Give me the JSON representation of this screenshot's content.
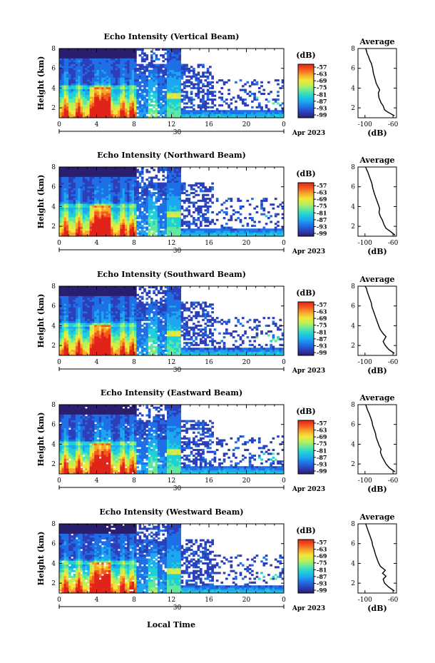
{
  "footer_xlabel": "Local Time",
  "date_label": "Apr 2023",
  "colormap": [
    "#2a1e6e",
    "#2c3fb8",
    "#1f6fe6",
    "#1ea6f0",
    "#1fd0d8",
    "#5fe8a0",
    "#b9f05a",
    "#f3e63a",
    "#f7a62a",
    "#f25a1e",
    "#e0241a"
  ],
  "chart_data": [
    {
      "type": "heatmap",
      "title": "Echo Intensity (Vertical Beam)",
      "ylabel": "Height (km)",
      "xlim": [
        0,
        24
      ],
      "ylim": [
        1,
        8
      ],
      "xticks": [
        "0",
        "4",
        "8",
        "12",
        "16",
        "20",
        "0"
      ],
      "yticks": [
        "2",
        "4",
        "6",
        "8"
      ],
      "day_marker": "30",
      "colorbar": {
        "unit": "(dB)",
        "ticks": [
          "-57",
          "-63",
          "-69",
          "-75",
          "-81",
          "-87",
          "-93",
          "-99"
        ]
      },
      "profile": {
        "title": "Average",
        "xlabel": "(dB)",
        "xticks": [
          "-100",
          "-60"
        ],
        "yticks": [
          "2",
          "4",
          "6",
          "8"
        ],
        "x": [
          -58,
          -68,
          -72,
          -74,
          -77,
          -80,
          -81,
          -79,
          -82,
          -84,
          -86,
          -88,
          -89,
          -91,
          -93,
          -95,
          -97,
          -98,
          -99
        ],
        "y": [
          1.2,
          1.6,
          1.8,
          2.2,
          2.5,
          3.0,
          3.5,
          3.8,
          4.2,
          4.5,
          5.0,
          5.5,
          6.0,
          6.5,
          6.8,
          7.2,
          7.5,
          7.8,
          8.0
        ]
      }
    },
    {
      "type": "heatmap",
      "title": "Echo Intensity (Northward Beam)",
      "ylabel": "Height (km)",
      "xlim": [
        0,
        24
      ],
      "ylim": [
        1,
        8
      ],
      "xticks": [
        "0",
        "4",
        "8",
        "12",
        "16",
        "20",
        "0"
      ],
      "yticks": [
        "2",
        "4",
        "6",
        "8"
      ],
      "day_marker": "30",
      "colorbar": {
        "unit": "(dB)",
        "ticks": [
          "-57",
          "-63",
          "-69",
          "-75",
          "-81",
          "-87",
          "-93",
          "-99"
        ]
      },
      "profile": {
        "title": "Average",
        "xlabel": "(dB)",
        "xticks": [
          "-100",
          "-60"
        ],
        "yticks": [
          "2",
          "4",
          "6",
          "8"
        ],
        "x": [
          -57,
          -64,
          -70,
          -73,
          -75,
          -78,
          -80,
          -79,
          -81,
          -83,
          -85,
          -87,
          -89,
          -90,
          -92,
          -94,
          -96,
          -98,
          -99
        ],
        "y": [
          1.1,
          1.5,
          1.8,
          2.2,
          2.6,
          3.0,
          3.4,
          3.8,
          4.2,
          4.6,
          5.0,
          5.4,
          5.9,
          6.3,
          6.7,
          7.1,
          7.5,
          7.8,
          8.0
        ]
      }
    },
    {
      "type": "heatmap",
      "title": "Echo Intensity (Southward Beam)",
      "ylabel": "Height (km)",
      "xlim": [
        0,
        24
      ],
      "ylim": [
        1,
        8
      ],
      "xticks": [
        "0",
        "4",
        "8",
        "12",
        "16",
        "20",
        "0"
      ],
      "yticks": [
        "2",
        "4",
        "6",
        "8"
      ],
      "day_marker": "30",
      "colorbar": {
        "unit": "(dB)",
        "ticks": [
          "-57",
          "-63",
          "-69",
          "-75",
          "-81",
          "-87",
          "-93",
          "-99"
        ]
      },
      "profile": {
        "title": "Average",
        "xlabel": "(dB)",
        "xticks": [
          "-100",
          "-60"
        ],
        "yticks": [
          "2",
          "4",
          "6",
          "8"
        ],
        "x": [
          -58,
          -66,
          -71,
          -74,
          -70,
          -74,
          -78,
          -80,
          -82,
          -84,
          -86,
          -88,
          -90,
          -91,
          -93,
          -95,
          -97,
          -98,
          -100
        ],
        "y": [
          1.2,
          1.6,
          2.0,
          2.4,
          2.9,
          3.2,
          3.6,
          3.9,
          4.3,
          4.7,
          5.1,
          5.5,
          5.9,
          6.3,
          6.7,
          7.1,
          7.5,
          7.8,
          8.0
        ]
      }
    },
    {
      "type": "heatmap",
      "title": "Echo Intensity (Eastward Beam)",
      "ylabel": "Height (km)",
      "xlim": [
        0,
        24
      ],
      "ylim": [
        1,
        8
      ],
      "xticks": [
        "0",
        "4",
        "8",
        "12",
        "16",
        "20",
        "0"
      ],
      "yticks": [
        "2",
        "4",
        "6",
        "8"
      ],
      "day_marker": "30",
      "colorbar": {
        "unit": "(dB)",
        "ticks": [
          "-57",
          "-63",
          "-69",
          "-75",
          "-81",
          "-87",
          "-93",
          "-99"
        ]
      },
      "profile": {
        "title": "Average",
        "xlabel": "(dB)",
        "xticks": [
          "-100",
          "-60"
        ],
        "yticks": [
          "2",
          "4",
          "6",
          "8"
        ],
        "x": [
          -57,
          -65,
          -70,
          -73,
          -76,
          -78,
          -77,
          -80,
          -82,
          -84,
          -85,
          -87,
          -89,
          -90,
          -92,
          -94,
          -96,
          -98,
          -99
        ],
        "y": [
          1.2,
          1.6,
          2.0,
          2.4,
          2.8,
          3.2,
          3.5,
          3.9,
          4.3,
          4.7,
          5.1,
          5.5,
          5.9,
          6.3,
          6.7,
          7.1,
          7.4,
          7.8,
          8.0
        ]
      }
    },
    {
      "type": "heatmap",
      "title": "Echo Intensity (Westward Beam)",
      "ylabel": "Height (km)",
      "xlim": [
        0,
        24
      ],
      "ylim": [
        1,
        8
      ],
      "xticks": [
        "0",
        "4",
        "8",
        "12",
        "16",
        "20",
        "0"
      ],
      "yticks": [
        "2",
        "4",
        "6",
        "8"
      ],
      "day_marker": "30",
      "colorbar": {
        "unit": "(dB)",
        "ticks": [
          "-57",
          "-63",
          "-69",
          "-75",
          "-81",
          "-87",
          "-93",
          "-99"
        ]
      },
      "profile": {
        "title": "Average",
        "xlabel": "(dB)",
        "xticks": [
          "-100",
          "-60"
        ],
        "yticks": [
          "2",
          "4",
          "6",
          "8"
        ],
        "x": [
          -58,
          -66,
          -72,
          -74,
          -70,
          -75,
          -71,
          -78,
          -81,
          -83,
          -85,
          -87,
          -89,
          -90,
          -92,
          -94,
          -96,
          -98,
          -99
        ],
        "y": [
          1.2,
          1.6,
          2.0,
          2.4,
          2.7,
          3.0,
          3.3,
          3.7,
          4.1,
          4.5,
          4.9,
          5.4,
          5.8,
          6.2,
          6.6,
          7.0,
          7.4,
          7.8,
          8.0
        ]
      }
    }
  ]
}
